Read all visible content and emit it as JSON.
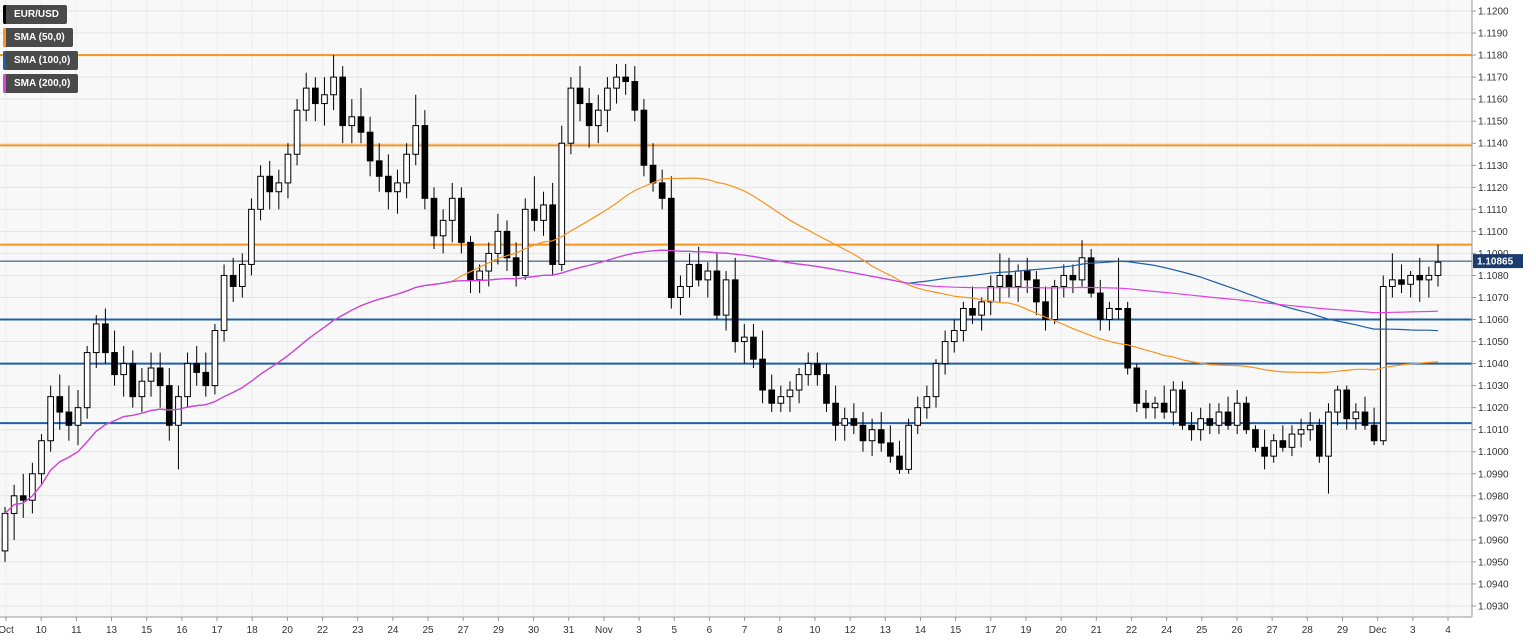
{
  "legend": [
    {
      "label": "EUR/USD",
      "color": "#000000"
    },
    {
      "label": "SMA (50,0)",
      "color": "#f7931e"
    },
    {
      "label": "SMA (100,0)",
      "color": "#1f5fa8"
    },
    {
      "label": "SMA (200,0)",
      "color": "#e040e0"
    }
  ],
  "chart_data": {
    "type": "candlestick",
    "title": "",
    "symbol": "EUR/USD",
    "last_price": "1.10865",
    "ylim": [
      1.0925,
      1.1205
    ],
    "yticks": [
      "1.1200",
      "1.1190",
      "1.1180",
      "1.1170",
      "1.1160",
      "1.1150",
      "1.1140",
      "1.1130",
      "1.1120",
      "1.1110",
      "1.1100",
      "1.1090",
      "1.1080",
      "1.1070",
      "1.1060",
      "1.1050",
      "1.1040",
      "1.1030",
      "1.1020",
      "1.1010",
      "1.1000",
      "1.0990",
      "1.0980",
      "1.0970",
      "1.0960",
      "1.0950",
      "1.0940",
      "1.0930"
    ],
    "xticks": [
      "Oct",
      "10",
      "11",
      "13",
      "15",
      "16",
      "17",
      "18",
      "20",
      "22",
      "23",
      "24",
      "25",
      "27",
      "29",
      "30",
      "31",
      "Nov",
      "3",
      "5",
      "6",
      "7",
      "8",
      "10",
      "12",
      "13",
      "14",
      "15",
      "17",
      "19",
      "20",
      "21",
      "22",
      "24",
      "25",
      "26",
      "27",
      "28",
      "29",
      "Dec",
      "3",
      "4"
    ],
    "grid": true,
    "horizontal_levels": [
      {
        "price": 1.118,
        "color": "#f7931e",
        "from": 0.0,
        "to": 1.0
      },
      {
        "price": 1.1139,
        "color": "#f7931e",
        "from": 0.0,
        "to": 1.0
      },
      {
        "price": 1.1094,
        "color": "#f7931e",
        "from": 0.0,
        "to": 1.0
      },
      {
        "price": 1.106,
        "color": "#1f5fa8",
        "from": 0.0,
        "to": 1.0
      },
      {
        "price": 1.104,
        "color": "#1f5fa8",
        "from": 0.0,
        "to": 1.0
      },
      {
        "price": 1.1013,
        "color": "#1f5fa8",
        "from": 0.0,
        "to": 1.0
      }
    ],
    "current_price_line": 1.10865,
    "candles": [
      [
        1.0955,
        1.0975,
        1.095,
        1.0972
      ],
      [
        1.0972,
        1.0985,
        1.096,
        1.098
      ],
      [
        1.098,
        1.099,
        1.097,
        1.0978
      ],
      [
        1.0978,
        1.0995,
        1.0972,
        1.099
      ],
      [
        1.099,
        1.1008,
        1.0985,
        1.1005
      ],
      [
        1.1005,
        1.103,
        1.1,
        1.1025
      ],
      [
        1.1025,
        1.1035,
        1.101,
        1.1018
      ],
      [
        1.1018,
        1.103,
        1.1005,
        1.1012
      ],
      [
        1.1012,
        1.1028,
        1.1003,
        1.102
      ],
      [
        1.102,
        1.1048,
        1.1015,
        1.1045
      ],
      [
        1.1045,
        1.1062,
        1.1038,
        1.1058
      ],
      [
        1.1058,
        1.1065,
        1.104,
        1.1045
      ],
      [
        1.1045,
        1.1055,
        1.103,
        1.1035
      ],
      [
        1.1035,
        1.1048,
        1.1025,
        1.104
      ],
      [
        1.104,
        1.1046,
        1.102,
        1.1025
      ],
      [
        1.1025,
        1.1038,
        1.1018,
        1.1032
      ],
      [
        1.1032,
        1.1045,
        1.1025,
        1.1038
      ],
      [
        1.1038,
        1.1045,
        1.102,
        1.103
      ],
      [
        1.103,
        1.1038,
        1.1005,
        1.1012
      ],
      [
        1.1012,
        1.103,
        1.0992,
        1.1025
      ],
      [
        1.1025,
        1.1045,
        1.102,
        1.104
      ],
      [
        1.104,
        1.1048,
        1.103,
        1.1036
      ],
      [
        1.1036,
        1.1045,
        1.1025,
        1.103
      ],
      [
        1.103,
        1.1058,
        1.1026,
        1.1055
      ],
      [
        1.1055,
        1.1085,
        1.105,
        1.108
      ],
      [
        1.108,
        1.1088,
        1.1068,
        1.1075
      ],
      [
        1.1075,
        1.109,
        1.107,
        1.1085
      ],
      [
        1.1085,
        1.1115,
        1.108,
        1.111
      ],
      [
        1.111,
        1.113,
        1.1105,
        1.1125
      ],
      [
        1.1125,
        1.1132,
        1.111,
        1.1118
      ],
      [
        1.1118,
        1.1128,
        1.111,
        1.1122
      ],
      [
        1.1122,
        1.114,
        1.1115,
        1.1135
      ],
      [
        1.1135,
        1.116,
        1.113,
        1.1155
      ],
      [
        1.1155,
        1.1172,
        1.115,
        1.1165
      ],
      [
        1.1165,
        1.117,
        1.115,
        1.1158
      ],
      [
        1.1158,
        1.117,
        1.1148,
        1.1162
      ],
      [
        1.1162,
        1.118,
        1.1155,
        1.117
      ],
      [
        1.117,
        1.1175,
        1.114,
        1.1148
      ],
      [
        1.1148,
        1.116,
        1.114,
        1.1152
      ],
      [
        1.1152,
        1.1165,
        1.114,
        1.1145
      ],
      [
        1.1145,
        1.1152,
        1.1125,
        1.1132
      ],
      [
        1.1132,
        1.114,
        1.1118,
        1.1125
      ],
      [
        1.1125,
        1.1135,
        1.111,
        1.1118
      ],
      [
        1.1118,
        1.1128,
        1.1108,
        1.1122
      ],
      [
        1.1122,
        1.114,
        1.1115,
        1.1135
      ],
      [
        1.1135,
        1.1162,
        1.113,
        1.1148
      ],
      [
        1.1148,
        1.1155,
        1.111,
        1.1115
      ],
      [
        1.1115,
        1.112,
        1.1092,
        1.1098
      ],
      [
        1.1098,
        1.111,
        1.109,
        1.1105
      ],
      [
        1.1105,
        1.1122,
        1.1095,
        1.1115
      ],
      [
        1.1115,
        1.112,
        1.109,
        1.1095
      ],
      [
        1.1095,
        1.1098,
        1.1072,
        1.1078
      ],
      [
        1.1078,
        1.1085,
        1.1072,
        1.1082
      ],
      [
        1.1082,
        1.1095,
        1.1075,
        1.109
      ],
      [
        1.109,
        1.1108,
        1.1085,
        1.11
      ],
      [
        1.11,
        1.1105,
        1.1082,
        1.1088
      ],
      [
        1.1088,
        1.1095,
        1.1075,
        1.108
      ],
      [
        1.108,
        1.1115,
        1.1078,
        1.111
      ],
      [
        1.111,
        1.1125,
        1.11,
        1.1105
      ],
      [
        1.1105,
        1.1118,
        1.1098,
        1.1112
      ],
      [
        1.1112,
        1.1122,
        1.108,
        1.1085
      ],
      [
        1.1085,
        1.1148,
        1.1082,
        1.114
      ],
      [
        1.114,
        1.117,
        1.1135,
        1.1165
      ],
      [
        1.1165,
        1.1175,
        1.115,
        1.1158
      ],
      [
        1.1158,
        1.1165,
        1.1138,
        1.1148
      ],
      [
        1.1148,
        1.1162,
        1.114,
        1.1155
      ],
      [
        1.1155,
        1.117,
        1.1145,
        1.1165
      ],
      [
        1.1165,
        1.1176,
        1.1158,
        1.117
      ],
      [
        1.117,
        1.1176,
        1.1162,
        1.1168
      ],
      [
        1.1168,
        1.1175,
        1.115,
        1.1155
      ],
      [
        1.1155,
        1.116,
        1.1125,
        1.113
      ],
      [
        1.113,
        1.114,
        1.1118,
        1.1122
      ],
      [
        1.1122,
        1.1128,
        1.111,
        1.1115
      ],
      [
        1.1115,
        1.1125,
        1.1065,
        1.107
      ],
      [
        1.107,
        1.108,
        1.1062,
        1.1075
      ],
      [
        1.1075,
        1.109,
        1.107,
        1.1085
      ],
      [
        1.1085,
        1.1093,
        1.1075,
        1.1078
      ],
      [
        1.1078,
        1.1086,
        1.107,
        1.1082
      ],
      [
        1.1082,
        1.109,
        1.106,
        1.1062
      ],
      [
        1.1062,
        1.1082,
        1.1055,
        1.1078
      ],
      [
        1.1078,
        1.1088,
        1.1045,
        1.105
      ],
      [
        1.105,
        1.1058,
        1.104,
        1.1052
      ],
      [
        1.1052,
        1.1058,
        1.1038,
        1.1042
      ],
      [
        1.1042,
        1.1055,
        1.1022,
        1.1028
      ],
      [
        1.1028,
        1.1035,
        1.1018,
        1.1022
      ],
      [
        1.1022,
        1.103,
        1.1018,
        1.1025
      ],
      [
        1.1025,
        1.1032,
        1.1018,
        1.1028
      ],
      [
        1.1028,
        1.1038,
        1.1022,
        1.1035
      ],
      [
        1.1035,
        1.1045,
        1.103,
        1.104
      ],
      [
        1.104,
        1.1045,
        1.103,
        1.1035
      ],
      [
        1.1035,
        1.104,
        1.1018,
        1.1022
      ],
      [
        1.1022,
        1.103,
        1.1005,
        1.1012
      ],
      [
        1.1012,
        1.102,
        1.1005,
        1.1015
      ],
      [
        1.1015,
        1.1022,
        1.1008,
        1.1012
      ],
      [
        1.1012,
        1.1018,
        1.1,
        1.1005
      ],
      [
        1.1005,
        1.1015,
        1.0998,
        1.101
      ],
      [
        1.101,
        1.1018,
        1.1,
        1.1004
      ],
      [
        1.1004,
        1.1012,
        1.0995,
        1.0998
      ],
      [
        1.0998,
        1.1005,
        1.099,
        1.0992
      ],
      [
        1.0992,
        1.1015,
        1.099,
        1.1012
      ],
      [
        1.1012,
        1.1025,
        1.1008,
        1.102
      ],
      [
        1.102,
        1.103,
        1.1015,
        1.1025
      ],
      [
        1.1025,
        1.1042,
        1.102,
        1.104
      ],
      [
        1.104,
        1.1055,
        1.1035,
        1.105
      ],
      [
        1.105,
        1.106,
        1.1045,
        1.1055
      ],
      [
        1.1055,
        1.1068,
        1.105,
        1.1065
      ],
      [
        1.1065,
        1.1075,
        1.1058,
        1.1062
      ],
      [
        1.1062,
        1.107,
        1.1055,
        1.1068
      ],
      [
        1.1068,
        1.108,
        1.1062,
        1.1075
      ],
      [
        1.1075,
        1.109,
        1.1068,
        1.108
      ],
      [
        1.108,
        1.1088,
        1.107,
        1.1075
      ],
      [
        1.1075,
        1.1085,
        1.1068,
        1.1082
      ],
      [
        1.1082,
        1.1088,
        1.1072,
        1.1078
      ],
      [
        1.1078,
        1.1082,
        1.1062,
        1.1068
      ],
      [
        1.1068,
        1.1075,
        1.1055,
        1.106
      ],
      [
        1.106,
        1.1078,
        1.1058,
        1.1075
      ],
      [
        1.1075,
        1.1085,
        1.107,
        1.108
      ],
      [
        1.108,
        1.1085,
        1.1072,
        1.1078
      ],
      [
        1.1078,
        1.1096,
        1.1075,
        1.1088
      ],
      [
        1.1088,
        1.1092,
        1.107,
        1.1072
      ],
      [
        1.1072,
        1.1078,
        1.1055,
        1.106
      ],
      [
        1.106,
        1.1068,
        1.1055,
        1.1065
      ],
      [
        1.1065,
        1.1088,
        1.106,
        1.1065
      ],
      [
        1.1065,
        1.1068,
        1.1035,
        1.1038
      ],
      [
        1.1038,
        1.104,
        1.1018,
        1.1022
      ],
      [
        1.1022,
        1.1028,
        1.1015,
        1.102
      ],
      [
        1.102,
        1.1025,
        1.1015,
        1.1022
      ],
      [
        1.1022,
        1.103,
        1.1015,
        1.1018
      ],
      [
        1.1018,
        1.1032,
        1.1012,
        1.1028
      ],
      [
        1.1028,
        1.1032,
        1.101,
        1.1012
      ],
      [
        1.1012,
        1.1018,
        1.1005,
        1.101
      ],
      [
        1.101,
        1.102,
        1.1005,
        1.1015
      ],
      [
        1.1015,
        1.1022,
        1.1008,
        1.1012
      ],
      [
        1.1012,
        1.1022,
        1.1008,
        1.1018
      ],
      [
        1.1018,
        1.1025,
        1.101,
        1.1012
      ],
      [
        1.1012,
        1.1028,
        1.1008,
        1.1022
      ],
      [
        1.1022,
        1.1025,
        1.1008,
        1.101
      ],
      [
        1.101,
        1.1012,
        1.1,
        1.1002
      ],
      [
        1.1002,
        1.101,
        1.0992,
        1.0998
      ],
      [
        1.0998,
        1.1008,
        1.0995,
        1.1005
      ],
      [
        1.1005,
        1.1012,
        1.1,
        1.1002
      ],
      [
        1.1002,
        1.1012,
        1.0998,
        1.1008
      ],
      [
        1.1008,
        1.1015,
        1.1002,
        1.101
      ],
      [
        1.101,
        1.1018,
        1.1005,
        1.1012
      ],
      [
        1.1012,
        1.1015,
        1.0995,
        1.0998
      ],
      [
        1.0998,
        1.1022,
        1.0981,
        1.1018
      ],
      [
        1.1018,
        1.103,
        1.1012,
        1.1028
      ],
      [
        1.1028,
        1.103,
        1.101,
        1.1015
      ],
      [
        1.1015,
        1.1022,
        1.101,
        1.1018
      ],
      [
        1.1018,
        1.1025,
        1.101,
        1.1012
      ],
      [
        1.1012,
        1.102,
        1.1003,
        1.1005
      ],
      [
        1.1005,
        1.108,
        1.1003,
        1.1075
      ],
      [
        1.1075,
        1.109,
        1.107,
        1.1078
      ],
      [
        1.1078,
        1.1085,
        1.1072,
        1.1076
      ],
      [
        1.1076,
        1.1082,
        1.107,
        1.108
      ],
      [
        1.108,
        1.1088,
        1.1068,
        1.1078
      ],
      [
        1.1078,
        1.1084,
        1.107,
        1.108
      ],
      [
        1.108,
        1.1094,
        1.1075,
        1.1086
      ]
    ]
  }
}
